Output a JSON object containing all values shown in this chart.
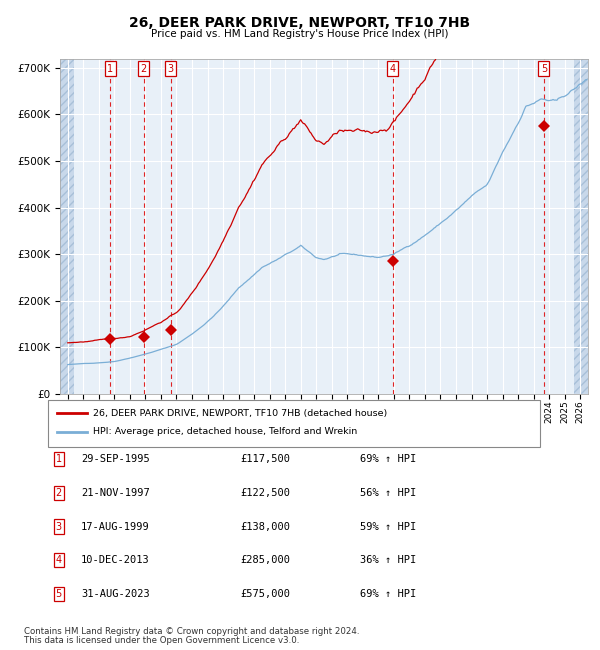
{
  "title": "26, DEER PARK DRIVE, NEWPORT, TF10 7HB",
  "subtitle": "Price paid vs. HM Land Registry's House Price Index (HPI)",
  "xlim": [
    1992.5,
    2026.5
  ],
  "ylim": [
    0,
    720000
  ],
  "yticks": [
    0,
    100000,
    200000,
    300000,
    400000,
    500000,
    600000,
    700000
  ],
  "ytick_labels": [
    "£0",
    "£100K",
    "£200K",
    "£300K",
    "£400K",
    "£500K",
    "£600K",
    "£700K"
  ],
  "transactions": [
    {
      "num": 1,
      "date": "29-SEP-1995",
      "year": 1995.75,
      "price": 117500,
      "pct": "69%",
      "dir": "↑"
    },
    {
      "num": 2,
      "date": "21-NOV-1997",
      "year": 1997.89,
      "price": 122500,
      "pct": "56%",
      "dir": "↑"
    },
    {
      "num": 3,
      "date": "17-AUG-1999",
      "year": 1999.63,
      "price": 138000,
      "pct": "59%",
      "dir": "↑"
    },
    {
      "num": 4,
      "date": "10-DEC-2013",
      "year": 2013.94,
      "price": 285000,
      "pct": "36%",
      "dir": "↑"
    },
    {
      "num": 5,
      "date": "31-AUG-2023",
      "year": 2023.66,
      "price": 575000,
      "pct": "69%",
      "dir": "↑"
    }
  ],
  "legend_line1": "26, DEER PARK DRIVE, NEWPORT, TF10 7HB (detached house)",
  "legend_line2": "HPI: Average price, detached house, Telford and Wrekin",
  "footer1": "Contains HM Land Registry data © Crown copyright and database right 2024.",
  "footer2": "This data is licensed under the Open Government Licence v3.0.",
  "plot_bg": "#e8f0f8",
  "grid_color": "#ffffff",
  "red_line_color": "#cc0000",
  "blue_line_color": "#7aaed6",
  "vline_color": "#dd0000",
  "marker_color": "#cc0000",
  "label_box_color": "#cc0000",
  "hatch_color": "#c8d8ea"
}
